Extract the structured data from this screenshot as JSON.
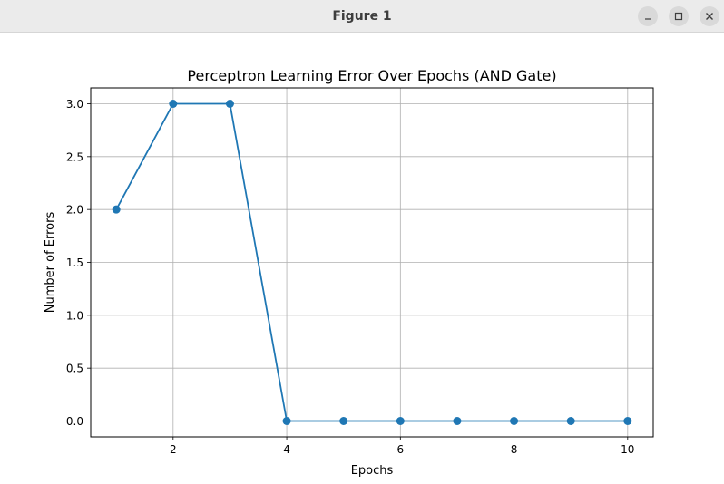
{
  "window": {
    "title": "Figure 1",
    "buttons": [
      {
        "name": "minimize",
        "icon": "minimize-icon"
      },
      {
        "name": "maximize",
        "icon": "maximize-icon"
      },
      {
        "name": "close",
        "icon": "close-icon"
      }
    ]
  },
  "chart_data": {
    "type": "line",
    "title": "Perceptron Learning Error Over Epochs (AND Gate)",
    "xlabel": "Epochs",
    "ylabel": "Number of Errors",
    "x": [
      1,
      2,
      3,
      4,
      5,
      6,
      7,
      8,
      9,
      10
    ],
    "series": [
      {
        "values": [
          2,
          3,
          3,
          0,
          0,
          0,
          0,
          0,
          0,
          0
        ],
        "color": "#1f77b4",
        "marker": "circle"
      }
    ],
    "xlim": [
      0.55,
      10.45
    ],
    "ylim": [
      -0.15,
      3.15
    ],
    "xticks": [
      2,
      4,
      6,
      8,
      10
    ],
    "xtick_labels": [
      "2",
      "4",
      "6",
      "8",
      "10"
    ],
    "yticks": [
      0.0,
      0.5,
      1.0,
      1.5,
      2.0,
      2.5,
      3.0
    ],
    "ytick_labels": [
      "0.0",
      "0.5",
      "1.0",
      "1.5",
      "2.0",
      "2.5",
      "3.0"
    ],
    "grid": true,
    "grid_color": "#b0b0b0"
  }
}
